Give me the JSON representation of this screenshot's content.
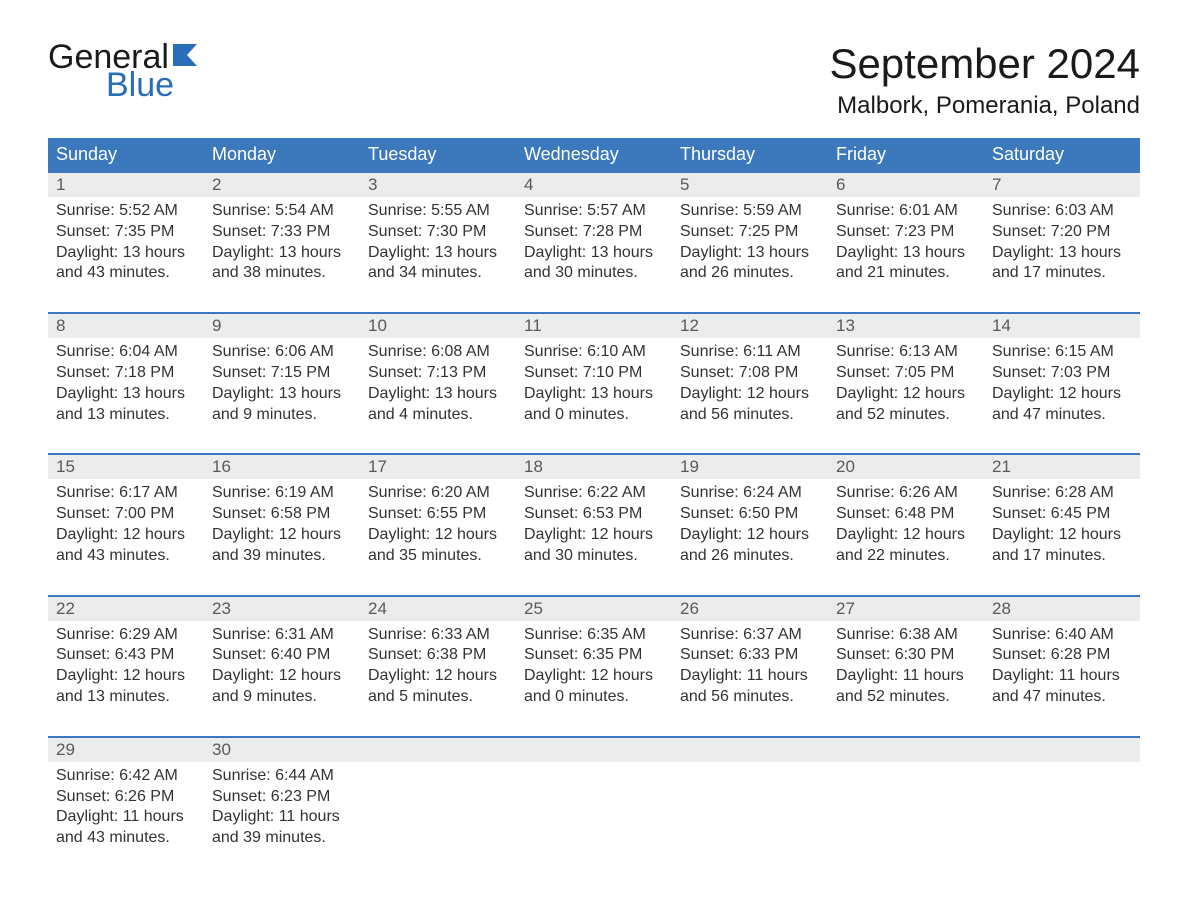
{
  "brand": {
    "word1": "General",
    "word2": "Blue",
    "color": "#2a6db8"
  },
  "title": "September 2024",
  "location": "Malbork, Pomerania, Poland",
  "colors": {
    "header_bg": "#3b78bc",
    "header_text": "#ffffff",
    "daynum_bg": "#ececec",
    "daynum_text": "#5a5a5a",
    "body_text": "#333333",
    "rule": "#3b78bc"
  },
  "day_headers": [
    "Sunday",
    "Monday",
    "Tuesday",
    "Wednesday",
    "Thursday",
    "Friday",
    "Saturday"
  ],
  "weeks": [
    [
      {
        "n": "1",
        "sunrise": "5:52 AM",
        "sunset": "7:35 PM",
        "daylight_h": "13",
        "daylight_m": "43"
      },
      {
        "n": "2",
        "sunrise": "5:54 AM",
        "sunset": "7:33 PM",
        "daylight_h": "13",
        "daylight_m": "38"
      },
      {
        "n": "3",
        "sunrise": "5:55 AM",
        "sunset": "7:30 PM",
        "daylight_h": "13",
        "daylight_m": "34"
      },
      {
        "n": "4",
        "sunrise": "5:57 AM",
        "sunset": "7:28 PM",
        "daylight_h": "13",
        "daylight_m": "30"
      },
      {
        "n": "5",
        "sunrise": "5:59 AM",
        "sunset": "7:25 PM",
        "daylight_h": "13",
        "daylight_m": "26"
      },
      {
        "n": "6",
        "sunrise": "6:01 AM",
        "sunset": "7:23 PM",
        "daylight_h": "13",
        "daylight_m": "21"
      },
      {
        "n": "7",
        "sunrise": "6:03 AM",
        "sunset": "7:20 PM",
        "daylight_h": "13",
        "daylight_m": "17"
      }
    ],
    [
      {
        "n": "8",
        "sunrise": "6:04 AM",
        "sunset": "7:18 PM",
        "daylight_h": "13",
        "daylight_m": "13"
      },
      {
        "n": "9",
        "sunrise": "6:06 AM",
        "sunset": "7:15 PM",
        "daylight_h": "13",
        "daylight_m": "9"
      },
      {
        "n": "10",
        "sunrise": "6:08 AM",
        "sunset": "7:13 PM",
        "daylight_h": "13",
        "daylight_m": "4"
      },
      {
        "n": "11",
        "sunrise": "6:10 AM",
        "sunset": "7:10 PM",
        "daylight_h": "13",
        "daylight_m": "0"
      },
      {
        "n": "12",
        "sunrise": "6:11 AM",
        "sunset": "7:08 PM",
        "daylight_h": "12",
        "daylight_m": "56"
      },
      {
        "n": "13",
        "sunrise": "6:13 AM",
        "sunset": "7:05 PM",
        "daylight_h": "12",
        "daylight_m": "52"
      },
      {
        "n": "14",
        "sunrise": "6:15 AM",
        "sunset": "7:03 PM",
        "daylight_h": "12",
        "daylight_m": "47"
      }
    ],
    [
      {
        "n": "15",
        "sunrise": "6:17 AM",
        "sunset": "7:00 PM",
        "daylight_h": "12",
        "daylight_m": "43"
      },
      {
        "n": "16",
        "sunrise": "6:19 AM",
        "sunset": "6:58 PM",
        "daylight_h": "12",
        "daylight_m": "39"
      },
      {
        "n": "17",
        "sunrise": "6:20 AM",
        "sunset": "6:55 PM",
        "daylight_h": "12",
        "daylight_m": "35"
      },
      {
        "n": "18",
        "sunrise": "6:22 AM",
        "sunset": "6:53 PM",
        "daylight_h": "12",
        "daylight_m": "30"
      },
      {
        "n": "19",
        "sunrise": "6:24 AM",
        "sunset": "6:50 PM",
        "daylight_h": "12",
        "daylight_m": "26"
      },
      {
        "n": "20",
        "sunrise": "6:26 AM",
        "sunset": "6:48 PM",
        "daylight_h": "12",
        "daylight_m": "22"
      },
      {
        "n": "21",
        "sunrise": "6:28 AM",
        "sunset": "6:45 PM",
        "daylight_h": "12",
        "daylight_m": "17"
      }
    ],
    [
      {
        "n": "22",
        "sunrise": "6:29 AM",
        "sunset": "6:43 PM",
        "daylight_h": "12",
        "daylight_m": "13"
      },
      {
        "n": "23",
        "sunrise": "6:31 AM",
        "sunset": "6:40 PM",
        "daylight_h": "12",
        "daylight_m": "9"
      },
      {
        "n": "24",
        "sunrise": "6:33 AM",
        "sunset": "6:38 PM",
        "daylight_h": "12",
        "daylight_m": "5"
      },
      {
        "n": "25",
        "sunrise": "6:35 AM",
        "sunset": "6:35 PM",
        "daylight_h": "12",
        "daylight_m": "0"
      },
      {
        "n": "26",
        "sunrise": "6:37 AM",
        "sunset": "6:33 PM",
        "daylight_h": "11",
        "daylight_m": "56"
      },
      {
        "n": "27",
        "sunrise": "6:38 AM",
        "sunset": "6:30 PM",
        "daylight_h": "11",
        "daylight_m": "52"
      },
      {
        "n": "28",
        "sunrise": "6:40 AM",
        "sunset": "6:28 PM",
        "daylight_h": "11",
        "daylight_m": "47"
      }
    ],
    [
      {
        "n": "29",
        "sunrise": "6:42 AM",
        "sunset": "6:26 PM",
        "daylight_h": "11",
        "daylight_m": "43"
      },
      {
        "n": "30",
        "sunrise": "6:44 AM",
        "sunset": "6:23 PM",
        "daylight_h": "11",
        "daylight_m": "39"
      },
      {
        "empty": true
      },
      {
        "empty": true
      },
      {
        "empty": true
      },
      {
        "empty": true
      },
      {
        "empty": true
      }
    ]
  ],
  "labels": {
    "sunrise_prefix": "Sunrise: ",
    "sunset_prefix": "Sunset: ",
    "daylight_prefix": "Daylight: ",
    "hours_word": " hours",
    "and_word": "and ",
    "minutes_word": " minutes."
  }
}
